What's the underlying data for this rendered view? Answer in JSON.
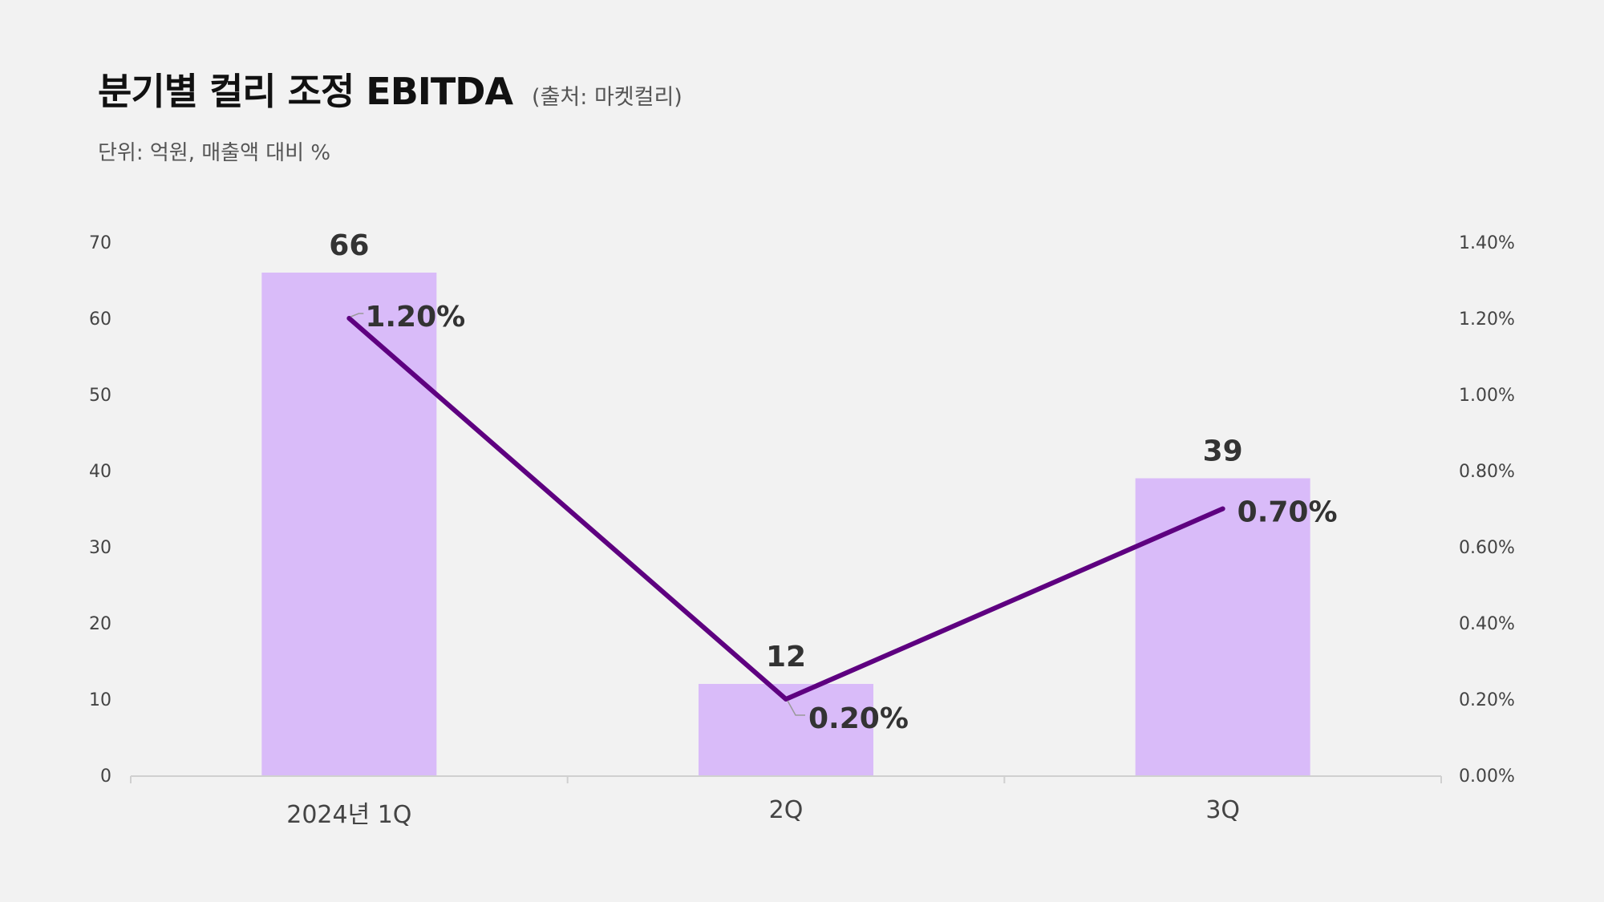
{
  "header": {
    "title": "분기별 컬리 조정 EBITDA",
    "source": "(출처: 마켓컬리)",
    "subtitle": "단위: 억원, 매출액 대비 %"
  },
  "chart_data": {
    "type": "bar",
    "categories": [
      "2024년 1Q",
      "2Q",
      "3Q"
    ],
    "series": [
      {
        "type": "bar",
        "axis": "left",
        "values": [
          66,
          12,
          39
        ],
        "labels": [
          "66",
          "12",
          "39"
        ],
        "color": "#d9bbf9"
      },
      {
        "type": "line",
        "axis": "right",
        "values": [
          1.2,
          0.2,
          0.7
        ],
        "labels": [
          "1.20%",
          "0.20%",
          "0.70%"
        ],
        "color": "#5e0080"
      }
    ],
    "ylim_left": [
      0,
      70
    ],
    "yticks_left": [
      "0",
      "10",
      "20",
      "30",
      "40",
      "50",
      "60",
      "70"
    ],
    "ylim_right": [
      0,
      1.4
    ],
    "yticks_right": [
      "0.00%",
      "0.20%",
      "0.40%",
      "0.60%",
      "0.80%",
      "1.00%",
      "1.20%",
      "1.40%"
    ],
    "grid": false,
    "legend": "none"
  }
}
